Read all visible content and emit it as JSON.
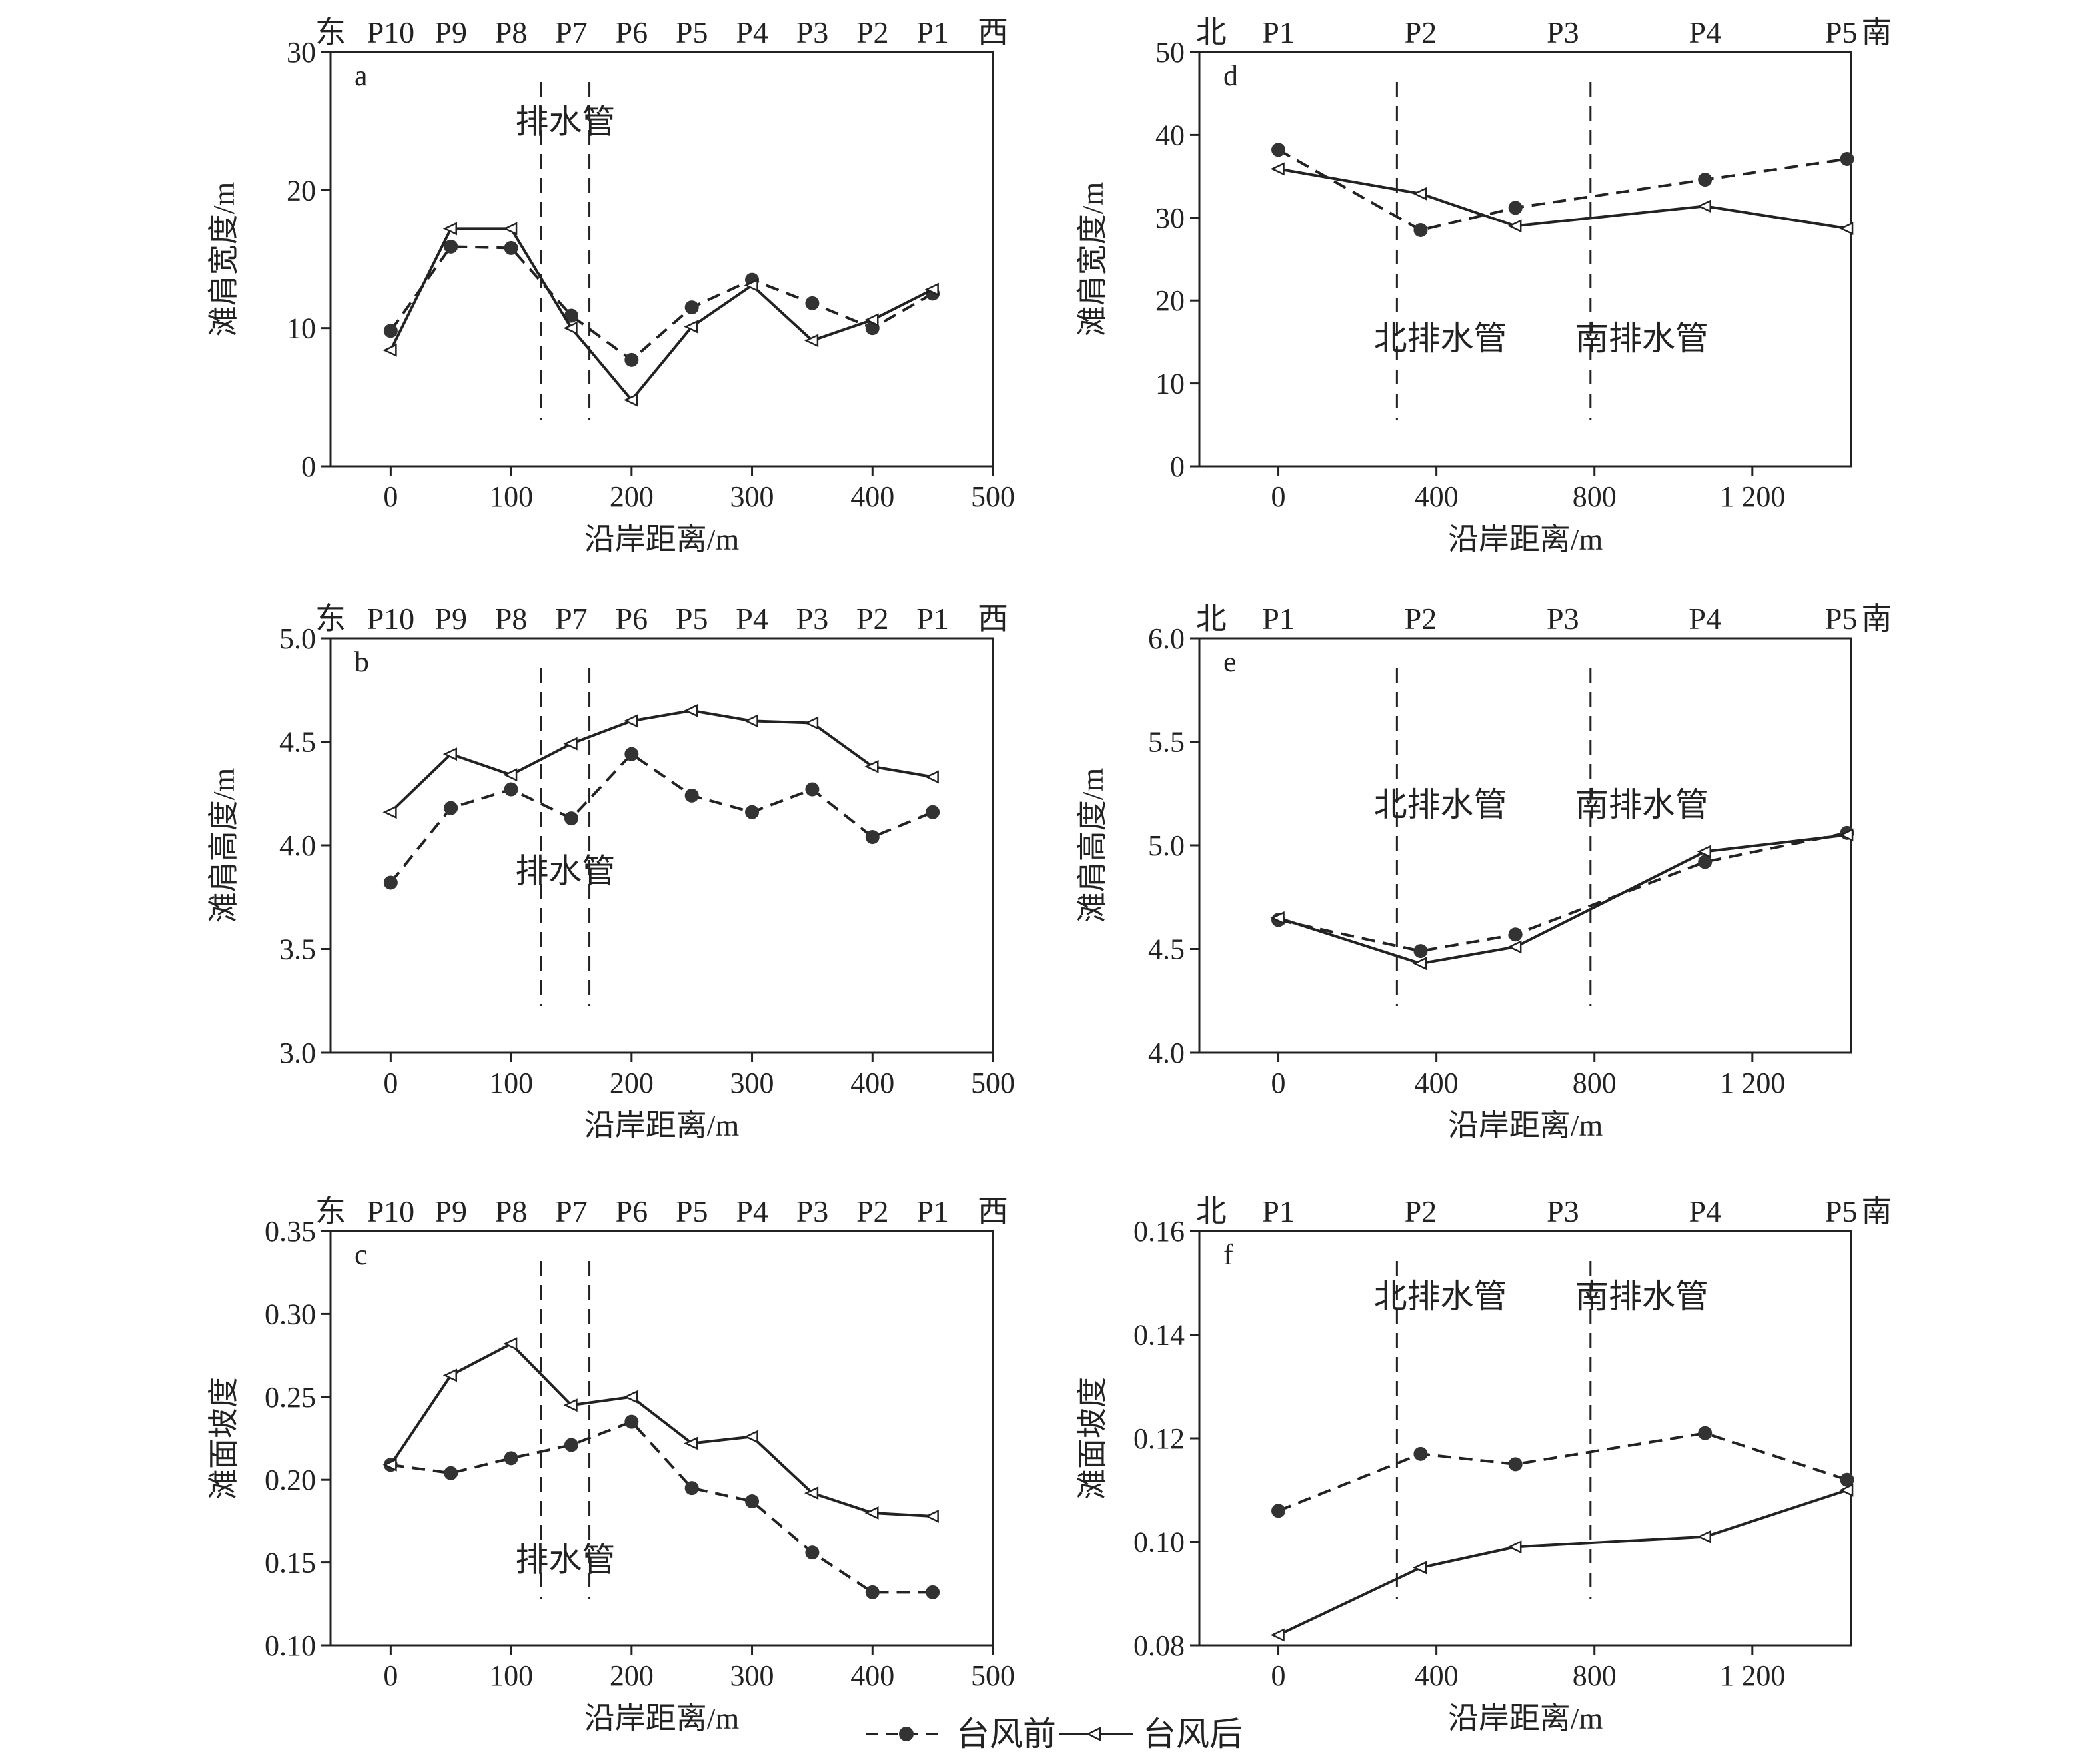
{
  "legend": {
    "before": "台风前",
    "after": "台风后"
  },
  "chart_data": [
    {
      "id": "a",
      "type": "line",
      "panel_label": "a",
      "xlabel": "沿岸距离/m",
      "ylabel": "滩肩宽度/m",
      "xlim": [
        -50,
        500
      ],
      "ylim": [
        0,
        30
      ],
      "xticks": [
        0,
        100,
        200,
        300,
        400,
        500
      ],
      "xtick_labels": [
        "0",
        "100",
        "200",
        "300",
        "400",
        "500"
      ],
      "yticks": [
        0,
        10,
        20,
        30
      ],
      "ytick_labels": [
        "0",
        "10",
        "20",
        "30"
      ],
      "top_labels": [
        "东",
        "P10",
        "P9",
        "P8",
        "P7",
        "P6",
        "P5",
        "P4",
        "P3",
        "P2",
        "P1",
        "西"
      ],
      "top_label_x": [
        -50,
        0,
        50,
        100,
        150,
        200,
        250,
        300,
        350,
        400,
        450,
        500
      ],
      "drain_pipes": [
        125,
        165
      ],
      "annotations": [
        {
          "text": "排水管",
          "x": 145,
          "y": 25
        }
      ],
      "x": [
        0,
        50,
        100,
        150,
        200,
        250,
        300,
        350,
        400,
        450
      ],
      "series": [
        {
          "name": "台风前",
          "values": [
            9.8,
            15.9,
            15.8,
            10.9,
            7.7,
            11.5,
            13.5,
            11.8,
            10.0,
            12.5
          ]
        },
        {
          "name": "台风后",
          "values": [
            8.4,
            17.2,
            17.2,
            10.0,
            4.8,
            10.1,
            13.1,
            9.1,
            10.6,
            12.8
          ]
        }
      ]
    },
    {
      "id": "b",
      "type": "line",
      "panel_label": "b",
      "xlabel": "沿岸距离/m",
      "ylabel": "滩肩高度/m",
      "xlim": [
        -50,
        500
      ],
      "ylim": [
        3.0,
        5.0
      ],
      "xticks": [
        0,
        100,
        200,
        300,
        400,
        500
      ],
      "xtick_labels": [
        "0",
        "100",
        "200",
        "300",
        "400",
        "500"
      ],
      "yticks": [
        3.0,
        3.5,
        4.0,
        4.5,
        5.0
      ],
      "ytick_labels": [
        "3.0",
        "3.5",
        "4.0",
        "4.5",
        "5.0"
      ],
      "top_labels": [
        "东",
        "P10",
        "P9",
        "P8",
        "P7",
        "P6",
        "P5",
        "P4",
        "P3",
        "P2",
        "P1",
        "西"
      ],
      "top_label_x": [
        -50,
        0,
        50,
        100,
        150,
        200,
        250,
        300,
        350,
        400,
        450,
        500
      ],
      "drain_pipes": [
        125,
        165
      ],
      "annotations": [
        {
          "text": "排水管",
          "x": 145,
          "y": 3.88
        }
      ],
      "x": [
        0,
        50,
        100,
        150,
        200,
        250,
        300,
        350,
        400,
        450
      ],
      "series": [
        {
          "name": "台风前",
          "values": [
            3.82,
            4.18,
            4.27,
            4.13,
            4.44,
            4.24,
            4.16,
            4.27,
            4.04,
            4.16
          ]
        },
        {
          "name": "台风后",
          "values": [
            4.16,
            4.44,
            4.34,
            4.49,
            4.6,
            4.65,
            4.6,
            4.59,
            4.38,
            4.33
          ]
        }
      ]
    },
    {
      "id": "c",
      "type": "line",
      "panel_label": "c",
      "xlabel": "沿岸距离/m",
      "ylabel": "滩面坡度",
      "xlim": [
        -50,
        500
      ],
      "ylim": [
        0.1,
        0.35
      ],
      "xticks": [
        0,
        100,
        200,
        300,
        400,
        500
      ],
      "xtick_labels": [
        "0",
        "100",
        "200",
        "300",
        "400",
        "500"
      ],
      "yticks": [
        0.1,
        0.15,
        0.2,
        0.25,
        0.3,
        0.35
      ],
      "ytick_labels": [
        "0.10",
        "0.15",
        "0.20",
        "0.25",
        "0.30",
        "0.35"
      ],
      "top_labels": [
        "东",
        "P10",
        "P9",
        "P8",
        "P7",
        "P6",
        "P5",
        "P4",
        "P3",
        "P2",
        "P1",
        "西"
      ],
      "top_label_x": [
        -50,
        0,
        50,
        100,
        150,
        200,
        250,
        300,
        350,
        400,
        450,
        500
      ],
      "drain_pipes": [
        125,
        165
      ],
      "annotations": [
        {
          "text": "排水管",
          "x": 145,
          "y": 0.152
        }
      ],
      "x": [
        0,
        50,
        100,
        150,
        200,
        250,
        300,
        350,
        400,
        450
      ],
      "series": [
        {
          "name": "台风前",
          "values": [
            0.209,
            0.204,
            0.213,
            0.221,
            0.235,
            0.195,
            0.187,
            0.156,
            0.132,
            0.132
          ]
        },
        {
          "name": "台风后",
          "values": [
            0.209,
            0.263,
            0.282,
            0.245,
            0.25,
            0.222,
            0.226,
            0.192,
            0.18,
            0.178
          ]
        }
      ]
    },
    {
      "id": "d",
      "type": "line",
      "panel_label": "d",
      "xlabel": "沿岸距离/m",
      "ylabel": "滩肩宽度/m",
      "xlim": [
        -200,
        1450
      ],
      "ylim": [
        0,
        50
      ],
      "xticks": [
        0,
        400,
        800,
        1200
      ],
      "xtick_labels": [
        "0",
        "400",
        "800",
        "1 200"
      ],
      "yticks": [
        0,
        10,
        20,
        30,
        40,
        50
      ],
      "ytick_labels": [
        "0",
        "10",
        "20",
        "30",
        "40",
        "50"
      ],
      "top_labels": [
        "北",
        "P1",
        "P2",
        "P3",
        "P4",
        "P5",
        "南"
      ],
      "top_label_x": [
        -170,
        0,
        360,
        720,
        1080,
        1425,
        1515
      ],
      "drain_pipes": [
        300,
        790
      ],
      "annotations": [
        {
          "text": "北排水管",
          "x": 410,
          "y": 15.5
        },
        {
          "text": "南排水管",
          "x": 920,
          "y": 15.5
        }
      ],
      "x": [
        0,
        360,
        600,
        1080,
        1440
      ],
      "series": [
        {
          "name": "台风前",
          "values": [
            38.2,
            28.5,
            31.2,
            34.6,
            37.1
          ]
        },
        {
          "name": "台风后",
          "values": [
            35.9,
            32.9,
            29.0,
            31.4,
            28.7
          ]
        }
      ]
    },
    {
      "id": "e",
      "type": "line",
      "panel_label": "e",
      "xlabel": "沿岸距离/m",
      "ylabel": "滩肩高度/m",
      "xlim": [
        -200,
        1450
      ],
      "ylim": [
        4.0,
        6.0
      ],
      "xticks": [
        0,
        400,
        800,
        1200
      ],
      "xtick_labels": [
        "0",
        "400",
        "800",
        "1 200"
      ],
      "yticks": [
        4.0,
        4.5,
        5.0,
        5.5,
        6.0
      ],
      "ytick_labels": [
        "4.0",
        "4.5",
        "5.0",
        "5.5",
        "6.0"
      ],
      "top_labels": [
        "北",
        "P1",
        "P2",
        "P3",
        "P4",
        "P5",
        "南"
      ],
      "top_label_x": [
        -170,
        0,
        360,
        720,
        1080,
        1425,
        1515
      ],
      "drain_pipes": [
        300,
        790
      ],
      "annotations": [
        {
          "text": "北排水管",
          "x": 410,
          "y": 5.2
        },
        {
          "text": "南排水管",
          "x": 920,
          "y": 5.2
        }
      ],
      "x": [
        0,
        360,
        600,
        1080,
        1440
      ],
      "series": [
        {
          "name": "台风前",
          "values": [
            4.64,
            4.49,
            4.57,
            4.92,
            5.06
          ]
        },
        {
          "name": "台风后",
          "values": [
            4.65,
            4.43,
            4.51,
            4.97,
            5.05
          ]
        }
      ]
    },
    {
      "id": "f",
      "type": "line",
      "panel_label": "f",
      "xlabel": "沿岸距离/m",
      "ylabel": "滩面坡度",
      "xlim": [
        -200,
        1450
      ],
      "ylim": [
        0.08,
        0.16
      ],
      "xticks": [
        0,
        400,
        800,
        1200
      ],
      "xtick_labels": [
        "0",
        "400",
        "800",
        "1 200"
      ],
      "yticks": [
        0.08,
        0.1,
        0.12,
        0.14,
        0.16
      ],
      "ytick_labels": [
        "0.08",
        "0.10",
        "0.12",
        "0.14",
        "0.16"
      ],
      "top_labels": [
        "北",
        "P1",
        "P2",
        "P3",
        "P4",
        "P5",
        "南"
      ],
      "top_label_x": [
        -170,
        0,
        360,
        720,
        1080,
        1425,
        1515
      ],
      "drain_pipes": [
        300,
        790
      ],
      "annotations": [
        {
          "text": "北排水管",
          "x": 410,
          "y": 0.1475
        },
        {
          "text": "南排水管",
          "x": 920,
          "y": 0.1475
        }
      ],
      "x": [
        0,
        360,
        600,
        1080,
        1440
      ],
      "series": [
        {
          "name": "台风前",
          "values": [
            0.106,
            0.117,
            0.115,
            0.121,
            0.112
          ]
        },
        {
          "name": "台风后",
          "values": [
            0.082,
            0.095,
            0.099,
            0.101,
            0.11
          ]
        }
      ]
    }
  ]
}
